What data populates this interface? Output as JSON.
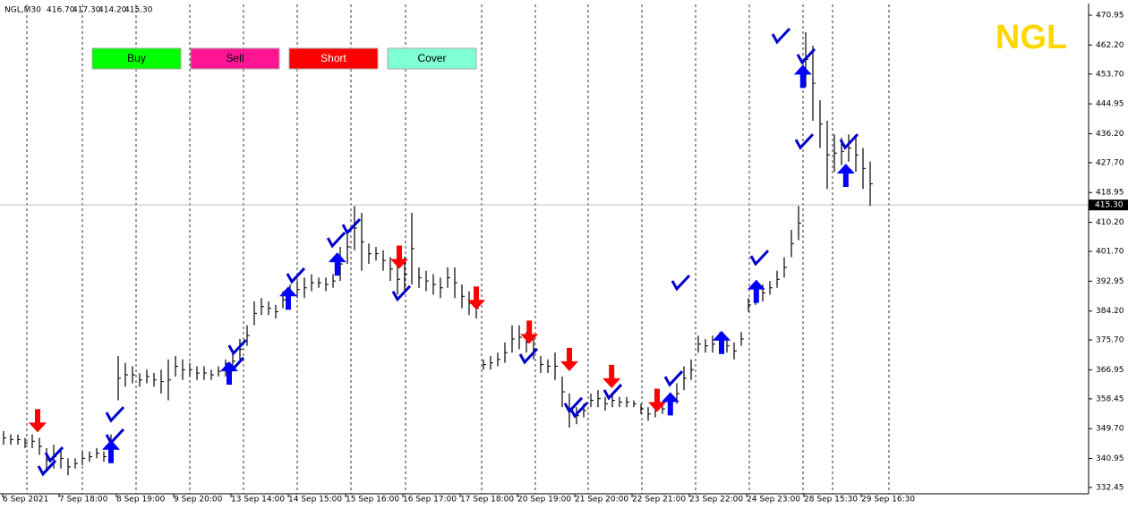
{
  "chart_data": {
    "type": "ohlc",
    "title": "NGL",
    "symbol": "NGL,M30",
    "quote": [
      "416.70",
      "417.30",
      "414.20",
      "415.30"
    ],
    "buttons": [
      {
        "label": "Buy",
        "color": "#00ff00"
      },
      {
        "label": "Sell",
        "color": "#ff1493"
      },
      {
        "label": "Short",
        "color": "#ff0000"
      },
      {
        "label": "Cover",
        "color": "#7fffd4"
      }
    ],
    "ylim": [
      330.6,
      474.1
    ],
    "yticks": [
      470.95,
      {
        "value": 462.2,
        "label": "462.20"
      },
      {
        "value": 453.7,
        "label": "453.70"
      },
      444.95,
      {
        "value": 436.2,
        "label": "436.20"
      },
      {
        "value": 427.7,
        "label": "427.70"
      },
      418.95,
      {
        "value": 410.2,
        "label": "410.20"
      },
      {
        "value": 401.7,
        "label": "401.70"
      },
      392.95,
      {
        "value": 384.2,
        "label": "384.20"
      },
      {
        "value": 375.7,
        "label": "375.70"
      },
      366.95,
      358.45,
      {
        "value": 349.7,
        "label": "349.70"
      },
      340.95,
      332.45
    ],
    "current_price": {
      "value": 415.3,
      "label": "415.30"
    },
    "xlim": [
      -0.5,
      151.375
    ],
    "xticks": [
      {
        "value": -0.125,
        "label": "6 Sep 2021"
      },
      {
        "value": 7.75,
        "label": "7 Sep 18:00"
      },
      {
        "value": 15.75,
        "label": "8 Sep 19:00"
      },
      {
        "value": 23.75,
        "label": "9 Sep 20:00"
      },
      {
        "value": 31.75,
        "label": "13 Sep 14:00"
      },
      {
        "value": 39.75,
        "label": "14 Sep 15:00"
      },
      {
        "value": 47.75,
        "label": "15 Sep 16:00"
      },
      {
        "value": 55.75,
        "label": "16 Sep 17:00"
      },
      {
        "value": 63.75,
        "label": "17 Sep 18:00"
      },
      {
        "value": 71.75,
        "label": "20 Sep 19:00"
      },
      {
        "value": 79.75,
        "label": "21 Sep 20:00"
      },
      {
        "value": 87.75,
        "label": "22 Sep 21:00"
      },
      {
        "value": 95.75,
        "label": "23 Sep 22:00"
      },
      {
        "value": 103.75,
        "label": "24 Sep 23:00"
      },
      {
        "value": 111.75,
        "label": "28 Sep 15:30"
      },
      {
        "value": 119.75,
        "label": "29 Sep 16:30"
      }
    ],
    "high": [
      349,
      348,
      348,
      347,
      348,
      347,
      344,
      345,
      344,
      341,
      341,
      343,
      343,
      344,
      343,
      348,
      371,
      369,
      368,
      366,
      367,
      366,
      367,
      370,
      371,
      370,
      369,
      368,
      368,
      367,
      368,
      370,
      372,
      376,
      380,
      387,
      388,
      387,
      386,
      390,
      392,
      393,
      394,
      395,
      394,
      394,
      395,
      403,
      408,
      415,
      413,
      404,
      403,
      402,
      400,
      398,
      400,
      413,
      397,
      396,
      395,
      394,
      397,
      397,
      392,
      390,
      388,
      370,
      371,
      372,
      375,
      380,
      380,
      378,
      376,
      371,
      370,
      372,
      365,
      360,
      356,
      357,
      360,
      361,
      359,
      360,
      359,
      359,
      358,
      357,
      356,
      357,
      357,
      360,
      363,
      368,
      370,
      377,
      376,
      377,
      378,
      376,
      375,
      378,
      388,
      390,
      392,
      393,
      396,
      400,
      408,
      415,
      466,
      462,
      446,
      440,
      436,
      435,
      436,
      435,
      432,
      428
    ],
    "low": [
      345,
      345,
      345,
      344,
      344,
      342,
      337,
      338,
      338,
      336,
      338,
      339,
      340,
      341,
      340,
      342,
      358,
      362,
      363,
      362,
      363,
      362,
      360,
      358,
      365,
      364,
      365,
      364,
      364,
      364,
      365,
      365,
      367,
      370,
      374,
      380,
      383,
      383,
      382,
      385,
      387,
      388,
      388,
      390,
      391,
      390,
      391,
      393,
      398,
      402,
      396,
      398,
      399,
      396,
      393,
      389,
      390,
      392,
      391,
      390,
      389,
      388,
      391,
      388,
      385,
      383,
      382,
      367,
      367,
      368,
      369,
      372,
      373,
      372,
      370,
      366,
      366,
      364,
      356,
      350,
      351,
      353,
      356,
      356,
      355,
      356,
      356,
      356,
      356,
      354,
      352,
      353,
      354,
      355,
      357,
      361,
      364,
      372,
      372,
      372,
      373,
      372,
      370,
      374,
      384,
      386,
      387,
      389,
      391,
      394,
      400,
      405,
      450,
      440,
      432,
      420,
      425,
      427,
      428,
      425,
      420,
      415
    ],
    "up_arrows": {
      "x": [
        15,
        31.5,
        39.75,
        46.6,
        93.1,
        100.25,
        105.1,
        111.6,
        117.6
      ],
      "values": [
        343,
        366,
        388,
        398,
        357,
        375,
        390,
        453,
        424
      ]
    },
    "down_arrows": {
      "x": [
        4.75,
        55.25,
        66,
        73.4,
        79,
        84.9,
        91.25
      ],
      "values": [
        352,
        400,
        388,
        378,
        370,
        365,
        358
      ]
    },
    "checks": {
      "x": [
        6,
        7,
        15.5,
        15.5,
        32.6,
        32.25,
        40.75,
        46.4,
        48.5,
        55.5,
        73.25,
        79.5,
        80.25,
        85,
        93.5,
        94.5,
        105.5,
        108.5,
        112,
        111.75,
        118
      ],
      "values": [
        337.7,
        341.6,
        353.4,
        346.9,
        373.1,
        367.9,
        394.1,
        404.6,
        408.5,
        388.9,
        370.5,
        356.1,
        354.7,
        360,
        363.9,
        392,
        399.3,
        464.4,
        458.4,
        433.4,
        433.4
      ]
    }
  }
}
